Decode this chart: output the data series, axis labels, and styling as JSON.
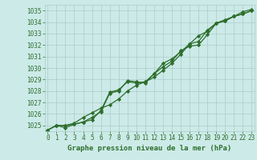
{
  "title": "Graphe pression niveau de la mer (hPa)",
  "background_color": "#cceae7",
  "grid_color": "#aacccc",
  "line_color": "#2d6e2d",
  "marker": "D",
  "markersize": 2.2,
  "linewidth": 0.9,
  "xlim": [
    -0.3,
    23.3
  ],
  "ylim": [
    1024.5,
    1035.5
  ],
  "yticks": [
    1025,
    1026,
    1027,
    1028,
    1029,
    1030,
    1031,
    1032,
    1033,
    1034,
    1035
  ],
  "xticks": [
    0,
    1,
    2,
    3,
    4,
    5,
    6,
    7,
    8,
    9,
    10,
    11,
    12,
    13,
    14,
    15,
    16,
    17,
    18,
    19,
    20,
    21,
    22,
    23
  ],
  "tick_fontsize": 5.5,
  "label_fontsize": 6.5,
  "series": [
    [
      1024.6,
      1025.0,
      1025.0,
      1025.1,
      1025.3,
      1025.5,
      1026.3,
      1027.9,
      1028.1,
      1028.8,
      1028.7,
      1028.8,
      1029.2,
      1029.8,
      1030.4,
      1031.2,
      1032.1,
      1032.8,
      1033.2,
      1033.9,
      1034.1,
      1034.5,
      1034.7,
      1035.0
    ],
    [
      1024.6,
      1025.0,
      1025.0,
      1025.2,
      1025.7,
      1026.1,
      1026.5,
      1026.8,
      1027.3,
      1028.0,
      1028.5,
      1028.8,
      1029.5,
      1030.4,
      1030.8,
      1031.4,
      1032.1,
      1032.3,
      1033.3,
      1033.9,
      1034.1,
      1034.5,
      1034.9,
      1035.1
    ],
    [
      1024.6,
      1025.0,
      1024.8,
      1025.1,
      1025.3,
      1025.7,
      1026.2,
      1027.8,
      1028.0,
      1028.9,
      1028.8,
      1028.7,
      1029.5,
      1030.1,
      1030.6,
      1031.5,
      1031.9,
      1032.0,
      1032.9,
      1033.9,
      1034.2,
      1034.5,
      1034.7,
      1035.0
    ]
  ]
}
